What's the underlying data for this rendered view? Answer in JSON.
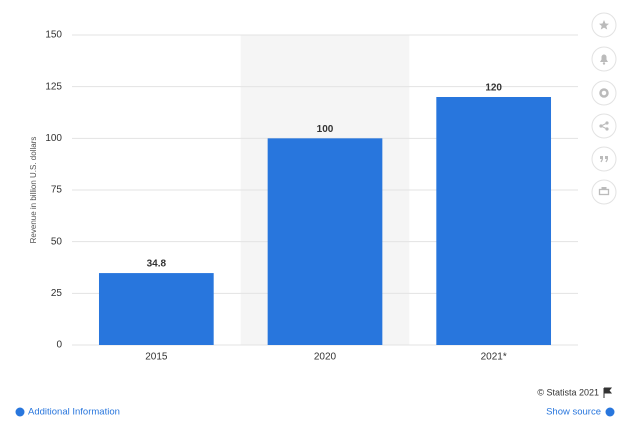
{
  "chart_data": {
    "type": "bar",
    "y_label": "Revenue in billion U.S. dollars",
    "categories": [
      "2015",
      "2020",
      "2021*"
    ],
    "values": [
      34.8,
      100,
      120
    ],
    "color": "#2876dd",
    "highlight_index": 1,
    "highlight_color": "#f5f5f5",
    "ylim": [
      0,
      150
    ],
    "yticks": [
      0,
      25,
      50,
      75,
      100,
      125,
      150
    ],
    "grid": true
  },
  "footer": {
    "copyright": "© Statista 2021",
    "additional_info": "Additional Information",
    "show_source": "Show source"
  }
}
